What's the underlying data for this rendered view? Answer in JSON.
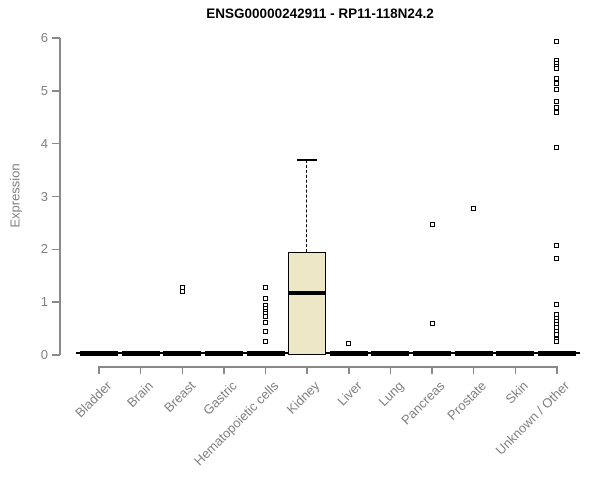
{
  "chart_data": {
    "type": "box",
    "title": "ENSG00000242911 - RP11-118N24.2",
    "ylabel": "Expression",
    "xlabel": "",
    "ylim": [
      0,
      6
    ],
    "yticks": [
      0,
      1,
      2,
      3,
      4,
      5,
      6
    ],
    "grid": false,
    "legend": false,
    "colors": {
      "box_fill": "#EDE7C6",
      "box_line": "#000000",
      "axis": "#8A8A8A",
      "labels": "#808080",
      "title": "#000000"
    },
    "categories": [
      "Bladder",
      "Brain",
      "Breast",
      "Gastric",
      "Hematopoietic cells",
      "Kidney",
      "Liver",
      "Lung",
      "Pancreas",
      "Prostate",
      "Skin",
      "Unknown / Other"
    ],
    "series": [
      {
        "category": "Bladder",
        "whisker_low": 0,
        "q1": 0,
        "median": 0,
        "q3": 0,
        "whisker_high": 0,
        "outliers": []
      },
      {
        "category": "Brain",
        "whisker_low": 0,
        "q1": 0,
        "median": 0,
        "q3": 0,
        "whisker_high": 0,
        "outliers": []
      },
      {
        "category": "Breast",
        "whisker_low": 0,
        "q1": 0,
        "median": 0,
        "q3": 0,
        "whisker_high": 0,
        "outliers": [
          1.28,
          1.2
        ]
      },
      {
        "category": "Gastric",
        "whisker_low": 0,
        "q1": 0,
        "median": 0,
        "q3": 0,
        "whisker_high": 0,
        "outliers": []
      },
      {
        "category": "Hematopoietic cells",
        "whisker_low": 0,
        "q1": 0,
        "median": 0,
        "q3": 0,
        "whisker_high": 0,
        "outliers": [
          1.27,
          1.06,
          0.93,
          0.88,
          0.83,
          0.78,
          0.72,
          0.61,
          0.44,
          0.25
        ]
      },
      {
        "category": "Kidney",
        "whisker_low": 0,
        "q1": 0,
        "median": 1.17,
        "q3": 1.95,
        "whisker_high": 3.7,
        "outliers": []
      },
      {
        "category": "Liver",
        "whisker_low": 0,
        "q1": 0,
        "median": 0,
        "q3": 0,
        "whisker_high": 0,
        "outliers": [
          0.21
        ]
      },
      {
        "category": "Lung",
        "whisker_low": 0,
        "q1": 0,
        "median": 0,
        "q3": 0,
        "whisker_high": 0,
        "outliers": []
      },
      {
        "category": "Pancreas",
        "whisker_low": 0,
        "q1": 0,
        "median": 0,
        "q3": 0,
        "whisker_high": 0,
        "outliers": [
          2.47,
          0.6
        ]
      },
      {
        "category": "Prostate",
        "whisker_low": 0,
        "q1": 0,
        "median": 0,
        "q3": 0,
        "whisker_high": 0,
        "outliers": [
          2.77
        ]
      },
      {
        "category": "Skin",
        "whisker_low": 0,
        "q1": 0,
        "median": 0,
        "q3": 0,
        "whisker_high": 0,
        "outliers": []
      },
      {
        "category": "Unknown / Other",
        "whisker_low": 0,
        "q1": 0,
        "median": 0,
        "q3": 0,
        "whisker_high": 0,
        "outliers": [
          5.93,
          5.58,
          5.52,
          5.46,
          5.43,
          5.24,
          5.13,
          5.03,
          4.79,
          4.69,
          4.59,
          3.92,
          2.08,
          1.83,
          0.95,
          0.76,
          0.7,
          0.64,
          0.58,
          0.52,
          0.45,
          0.38,
          0.3,
          0.25
        ]
      }
    ]
  }
}
